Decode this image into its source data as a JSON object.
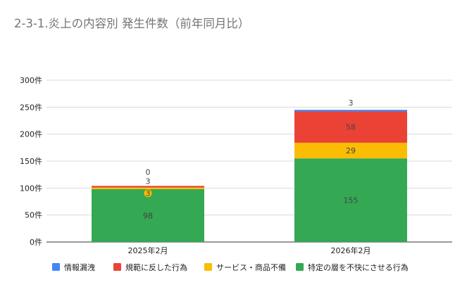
{
  "chart_data": {
    "type": "bar",
    "stacked": true,
    "title": "2-3-1.炎上の内容別 発生件数（前年同月比）",
    "categories": [
      "2025年2月",
      "2026年2月"
    ],
    "series": [
      {
        "name": "特定の層を不快にさせる行為",
        "color": "#34a853",
        "values": [
          98,
          155
        ],
        "labels": [
          "98",
          "155"
        ]
      },
      {
        "name": "サービス・商品不備",
        "color": "#fbbc04",
        "values": [
          3,
          29
        ],
        "labels": [
          "3",
          "29"
        ]
      },
      {
        "name": "規範に反した行為",
        "color": "#ea4335",
        "values": [
          3,
          58
        ],
        "labels": [
          "3",
          "58"
        ]
      },
      {
        "name": "情報漏洩",
        "color": "#4285f4",
        "values": [
          0,
          3
        ],
        "labels": [
          "0",
          "3"
        ]
      }
    ],
    "legend_order": [
      "情報漏洩",
      "規範に反した行為",
      "サービス・商品不備",
      "特定の層を不快にさせる行為"
    ],
    "legend_position": "bottom",
    "ylim": [
      0,
      300
    ],
    "yticks": [
      0,
      50,
      100,
      150,
      200,
      250,
      300
    ],
    "ytick_labels": [
      "0件",
      "50件",
      "100件",
      "150件",
      "200件",
      "250件",
      "300件"
    ],
    "grid": true
  }
}
